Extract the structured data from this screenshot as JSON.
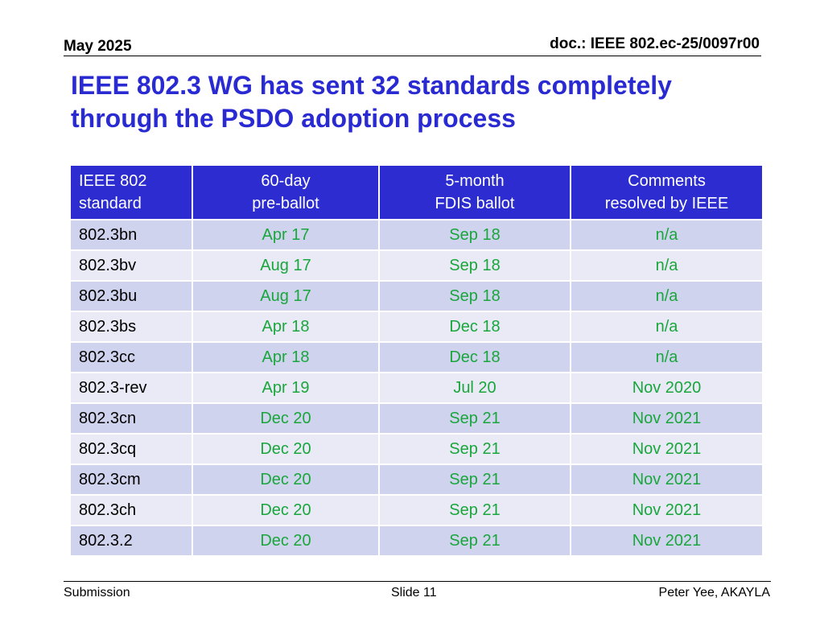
{
  "header": {
    "date": "May 2025",
    "doc_id": "doc.: IEEE 802.ec-25/0097r00"
  },
  "title": {
    "line1": "IEEE 802.3 WG has sent 32 standards completely",
    "line2": "through the PSDO adoption process"
  },
  "table": {
    "headers": [
      [
        "IEEE 802",
        "standard"
      ],
      [
        "60-day",
        "pre-ballot"
      ],
      [
        "5-month",
        "FDIS ballot"
      ],
      [
        "Comments",
        "resolved by IEEE"
      ]
    ],
    "rows": [
      [
        "802.3bn",
        "Apr 17",
        "Sep 18",
        "n/a"
      ],
      [
        "802.3bv",
        "Aug 17",
        "Sep 18",
        "n/a"
      ],
      [
        "802.3bu",
        "Aug 17",
        "Sep 18",
        "n/a"
      ],
      [
        "802.3bs",
        "Apr 18",
        "Dec 18",
        "n/a"
      ],
      [
        "802.3cc",
        "Apr 18",
        "Dec 18",
        "n/a"
      ],
      [
        "802.3-rev",
        "Apr 19",
        "Jul 20",
        "Nov 2020"
      ],
      [
        "802.3cn",
        "Dec 20",
        "Sep 21",
        "Nov 2021"
      ],
      [
        "802.3cq",
        "Dec 20",
        "Sep 21",
        "Nov 2021"
      ],
      [
        "802.3cm",
        "Dec 20",
        "Sep 21",
        "Nov 2021"
      ],
      [
        "802.3ch",
        "Dec 20",
        "Sep 21",
        "Nov 2021"
      ],
      [
        "802.3.2",
        "Dec 20",
        "Sep 21",
        "Nov 2021"
      ]
    ]
  },
  "footer": {
    "left": "Submission",
    "center": "Slide 11",
    "right": "Peter Yee, AKAYLA"
  },
  "colors": {
    "title": "#2a2ad2",
    "header_bg": "#2c2cd0",
    "row_odd": "#d0d3ed",
    "row_even": "#e9eaf6",
    "date_text": "#19a63c"
  }
}
